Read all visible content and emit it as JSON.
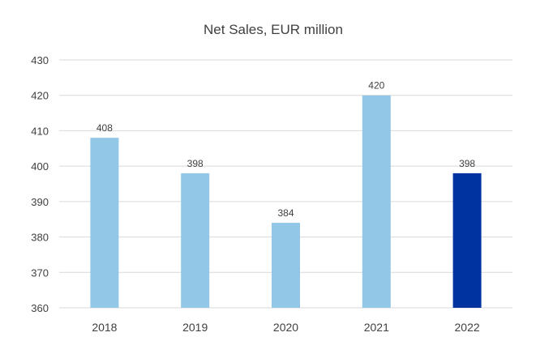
{
  "chart_data": {
    "type": "bar",
    "title": "Net Sales, EUR million",
    "xlabel": "",
    "ylabel": "",
    "categories": [
      "2018",
      "2019",
      "2020",
      "2021",
      "2022"
    ],
    "values": [
      408,
      398,
      384,
      420,
      398
    ],
    "data_labels": [
      "408",
      "398",
      "384",
      "420",
      "398"
    ],
    "ylim": [
      360,
      430
    ],
    "yticks": [
      "360",
      "370",
      "380",
      "390",
      "400",
      "410",
      "420",
      "430"
    ],
    "grid": true,
    "legend": "none",
    "colors": {
      "default_bar": "#92c7e8",
      "highlight_bar": "#0033a0",
      "grid": "#d9d9d9",
      "text": "#404040"
    },
    "highlight_index": 4
  }
}
